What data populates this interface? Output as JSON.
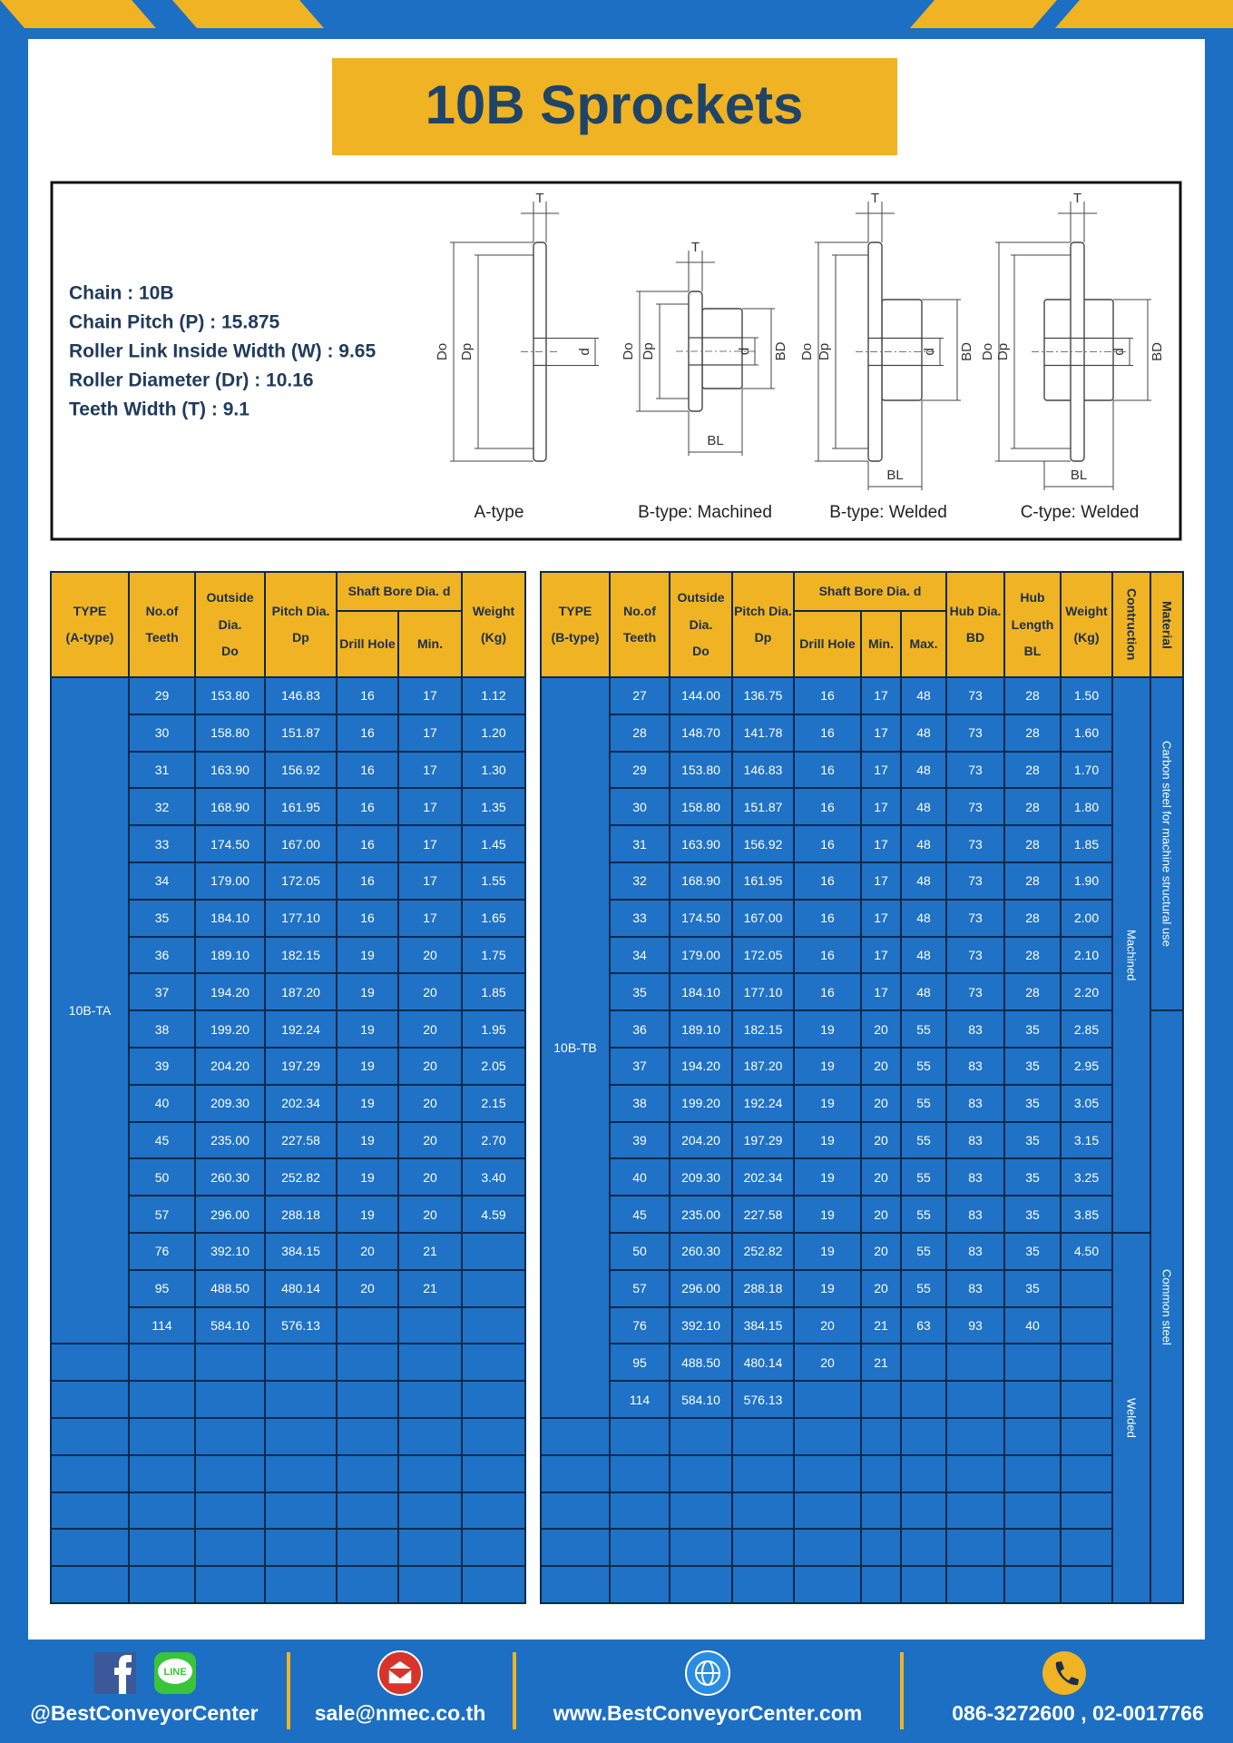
{
  "title": "10B Sprockets",
  "specs": [
    "Chain  :  10B",
    "Chain Pitch (P)  :  15.875",
    "Roller Link Inside Width (W) : 9.65",
    "Roller Diameter (Dr) : 10.16",
    "Teeth Width (T)  :  9.1"
  ],
  "diagram": {
    "dimension_labels": [
      "T",
      "Do",
      "Dp",
      "d",
      "BD",
      "BL"
    ],
    "captions": [
      "A-type",
      "B-type: Machined",
      "B-type: Welded",
      "C-type: Welded"
    ]
  },
  "table_a": {
    "header": [
      "TYPE\n\n(A-type)",
      "No.of\n\nTeeth",
      "Outside\n\nDia.\n\nDo",
      "Pitch Dia.\n\nDp",
      "Shaft Bore Dia. d",
      "Drill Hole",
      "Min.",
      "Weight\n\n(Kg)"
    ],
    "type": "10B-TA",
    "rows": [
      [
        "29",
        "153.80",
        "146.83",
        "16",
        "17",
        "1.12"
      ],
      [
        "30",
        "158.80",
        "151.87",
        "16",
        "17",
        "1.20"
      ],
      [
        "31",
        "163.90",
        "156.92",
        "16",
        "17",
        "1.30"
      ],
      [
        "32",
        "168.90",
        "161.95",
        "16",
        "17",
        "1.35"
      ],
      [
        "33",
        "174.50",
        "167.00",
        "16",
        "17",
        "1.45"
      ],
      [
        "34",
        "179.00",
        "172.05",
        "16",
        "17",
        "1.55"
      ],
      [
        "35",
        "184.10",
        "177.10",
        "16",
        "17",
        "1.65"
      ],
      [
        "36",
        "189.10",
        "182.15",
        "19",
        "20",
        "1.75"
      ],
      [
        "37",
        "194.20",
        "187.20",
        "19",
        "20",
        "1.85"
      ],
      [
        "38",
        "199.20",
        "192.24",
        "19",
        "20",
        "1.95"
      ],
      [
        "39",
        "204.20",
        "197.29",
        "19",
        "20",
        "2.05"
      ],
      [
        "40",
        "209.30",
        "202.34",
        "19",
        "20",
        "2.15"
      ],
      [
        "45",
        "235.00",
        "227.58",
        "19",
        "20",
        "2.70"
      ],
      [
        "50",
        "260.30",
        "252.82",
        "19",
        "20",
        "3.40"
      ],
      [
        "57",
        "296.00",
        "288.18",
        "19",
        "20",
        "4.59"
      ],
      [
        "76",
        "392.10",
        "384.15",
        "20",
        "21",
        null
      ],
      [
        "95",
        "488.50",
        "480.14",
        "20",
        "21",
        null
      ],
      [
        "114",
        "584.10",
        "576.13",
        null,
        null,
        null
      ]
    ]
  },
  "table_b": {
    "header": [
      "TYPE\n\n(B-type)",
      "No.of\n\nTeeth",
      "Outside\n\nDia.\n\nDo",
      "Pitch Dia.\n\nDp",
      "Shaft Bore Dia. d",
      "Drill Hole",
      "Min.",
      "Max.",
      "Hub Dia.\n\nBD",
      "Hub\n\nLength\n\nBL",
      "Weight\n\n(Kg)",
      "Contruction",
      "Material"
    ],
    "type": "10B-TB",
    "construction": [
      "Machined",
      "Welded"
    ],
    "material": [
      "Carbon steel for machine structural use",
      "Common steel"
    ],
    "rows": [
      [
        "27",
        "144.00",
        "136.75",
        "16",
        "17",
        "48",
        "73",
        "28",
        "1.50"
      ],
      [
        "28",
        "148.70",
        "141.78",
        "16",
        "17",
        "48",
        "73",
        "28",
        "1.60"
      ],
      [
        "29",
        "153.80",
        "146.83",
        "16",
        "17",
        "48",
        "73",
        "28",
        "1.70"
      ],
      [
        "30",
        "158.80",
        "151.87",
        "16",
        "17",
        "48",
        "73",
        "28",
        "1.80"
      ],
      [
        "31",
        "163.90",
        "156.92",
        "16",
        "17",
        "48",
        "73",
        "28",
        "1.85"
      ],
      [
        "32",
        "168.90",
        "161.95",
        "16",
        "17",
        "48",
        "73",
        "28",
        "1.90"
      ],
      [
        "33",
        "174.50",
        "167.00",
        "16",
        "17",
        "48",
        "73",
        "28",
        "2.00"
      ],
      [
        "34",
        "179.00",
        "172.05",
        "16",
        "17",
        "48",
        "73",
        "28",
        "2.10"
      ],
      [
        "35",
        "184.10",
        "177.10",
        "16",
        "17",
        "48",
        "73",
        "28",
        "2.20"
      ],
      [
        "36",
        "189.10",
        "182.15",
        "19",
        "20",
        "55",
        "83",
        "35",
        "2.85"
      ],
      [
        "37",
        "194.20",
        "187.20",
        "19",
        "20",
        "55",
        "83",
        "35",
        "2.95"
      ],
      [
        "38",
        "199.20",
        "192.24",
        "19",
        "20",
        "55",
        "83",
        "35",
        "3.05"
      ],
      [
        "39",
        "204.20",
        "197.29",
        "19",
        "20",
        "55",
        "83",
        "35",
        "3.15"
      ],
      [
        "40",
        "209.30",
        "202.34",
        "19",
        "20",
        "55",
        "83",
        "35",
        "3.25"
      ],
      [
        "45",
        "235.00",
        "227.58",
        "19",
        "20",
        "55",
        "83",
        "35",
        "3.85"
      ],
      [
        "50",
        "260.30",
        "252.82",
        "19",
        "20",
        "55",
        "83",
        "35",
        "4.50"
      ],
      [
        "57",
        "296.00",
        "288.18",
        "19",
        "20",
        "55",
        "83",
        "35",
        null
      ],
      [
        "76",
        "392.10",
        "384.15",
        "20",
        "21",
        "63",
        "93",
        "40",
        null
      ],
      [
        "95",
        "488.50",
        "480.14",
        "20",
        "21",
        null,
        null,
        null,
        null
      ],
      [
        "114",
        "584.10",
        "576.13",
        null,
        null,
        null,
        null,
        null,
        null
      ]
    ]
  },
  "footer": {
    "line_icon": "LINE",
    "contacts": [
      "@BestConveyorCenter",
      "sale@nmec.co.th",
      "www.BestConveyorCenter.com",
      "086-3272600 , 02-0017766"
    ]
  }
}
